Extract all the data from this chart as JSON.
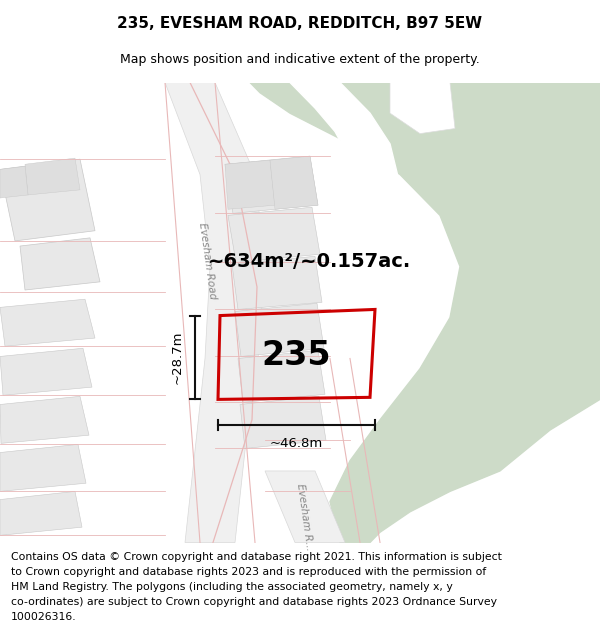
{
  "title": "235, EVESHAM ROAD, REDDITCH, B97 5EW",
  "subtitle": "Map shows position and indicative extent of the property.",
  "footer_lines": [
    "Contains OS data © Crown copyright and database right 2021. This information is subject",
    "to Crown copyright and database rights 2023 and is reproduced with the permission of",
    "HM Land Registry. The polygons (including the associated geometry, namely x, y",
    "co-ordinates) are subject to Crown copyright and database rights 2023 Ordnance Survey",
    "100026316."
  ],
  "area_label": "~634m²/~0.157ac.",
  "width_label": "~46.8m",
  "height_label": "~28.7m",
  "property_number": "235",
  "white": "#ffffff",
  "green_color": "#cddbc8",
  "block_color_light": "#e8e8e8",
  "block_color_mid": "#dedede",
  "block_edge": "#c8c8c8",
  "road_fill": "#f0f0f0",
  "road_outline": "#e0c8c8",
  "road_line_color": "#e8b8b8",
  "prop_color": "#cc0000",
  "dim_color": "#111111",
  "label_color": "#888888",
  "title_fontsize": 11,
  "subtitle_fontsize": 9,
  "footer_fontsize": 7.8,
  "area_fontsize": 14,
  "number_fontsize": 24,
  "dim_fontsize": 9.5,
  "road_label_fontsize": 7.5
}
